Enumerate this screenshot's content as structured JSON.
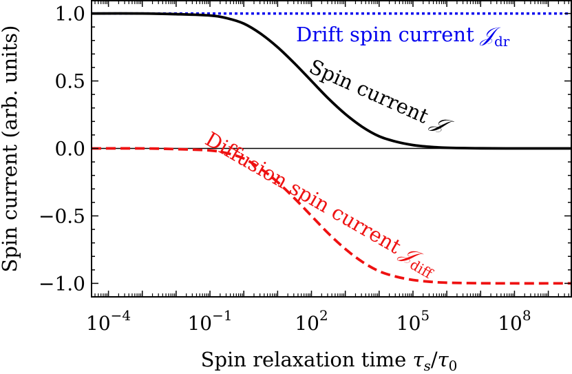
{
  "chart_data": {
    "type": "line",
    "xlabel": "Spin relaxation time τ_s/τ_0",
    "ylabel": "Spin current (arb. units)",
    "xscale": "log",
    "xlim_log10": [
      -4.5,
      9.7
    ],
    "ylim": [
      -1.1,
      1.1
    ],
    "grid": false,
    "x_ticks": [
      {
        "exp": -4,
        "base": "10",
        "sup": "−4"
      },
      {
        "exp": -1,
        "base": "10",
        "sup": "−1"
      },
      {
        "exp": 2,
        "base": "10",
        "sup": "2"
      },
      {
        "exp": 5,
        "base": "10",
        "sup": "5"
      },
      {
        "exp": 8,
        "base": "10",
        "sup": "8"
      }
    ],
    "y_ticks": [
      {
        "value": 1.0,
        "label": "1.0"
      },
      {
        "value": 0.5,
        "label": "0.5"
      },
      {
        "value": 0.0,
        "label": "0.0"
      },
      {
        "value": -0.5,
        "label": "−0.5"
      },
      {
        "value": -1.0,
        "label": "−1.0"
      }
    ],
    "x_log10": [
      -4.5,
      -3,
      -2,
      -1,
      -0.5,
      0,
      0.5,
      1,
      1.5,
      2,
      2.5,
      3,
      3.5,
      4,
      4.5,
      5,
      5.5,
      6,
      7,
      8,
      9,
      9.7
    ],
    "series": [
      {
        "name": "Drift spin current",
        "color": "#0000ee",
        "style": "dotted",
        "values": [
          1,
          1,
          1,
          1,
          1,
          1,
          1,
          1,
          1,
          1,
          1,
          1,
          1,
          1,
          1,
          1,
          1,
          1,
          1,
          1,
          1,
          1
        ]
      },
      {
        "name": "Spin current",
        "color": "#000000",
        "style": "solid",
        "values": [
          1.0,
          1.0,
          0.995,
          0.985,
          0.965,
          0.925,
          0.85,
          0.75,
          0.63,
          0.5,
          0.37,
          0.255,
          0.16,
          0.09,
          0.05,
          0.025,
          0.012,
          0.005,
          0.001,
          0.0,
          0.0,
          0.0
        ]
      },
      {
        "name": "Diffusion spin current",
        "color": "#ee1111",
        "style": "dashed",
        "values": [
          0.0,
          0.0,
          -0.005,
          -0.015,
          -0.035,
          -0.075,
          -0.15,
          -0.25,
          -0.37,
          -0.5,
          -0.63,
          -0.745,
          -0.84,
          -0.91,
          -0.95,
          -0.975,
          -0.988,
          -0.995,
          -0.999,
          -1.0,
          -1.0,
          -1.0
        ]
      }
    ],
    "annotations": [
      {
        "text": "Drift spin current ",
        "symbol": "𝒥",
        "sub": "dr",
        "color": "#0000ee"
      },
      {
        "text": "Spin current ",
        "symbol": "𝒥",
        "sub": "",
        "color": "#000000"
      },
      {
        "text": "Diffusion spin current",
        "symbol": "𝒥",
        "sub": "diff",
        "color": "#ee1111"
      }
    ]
  }
}
